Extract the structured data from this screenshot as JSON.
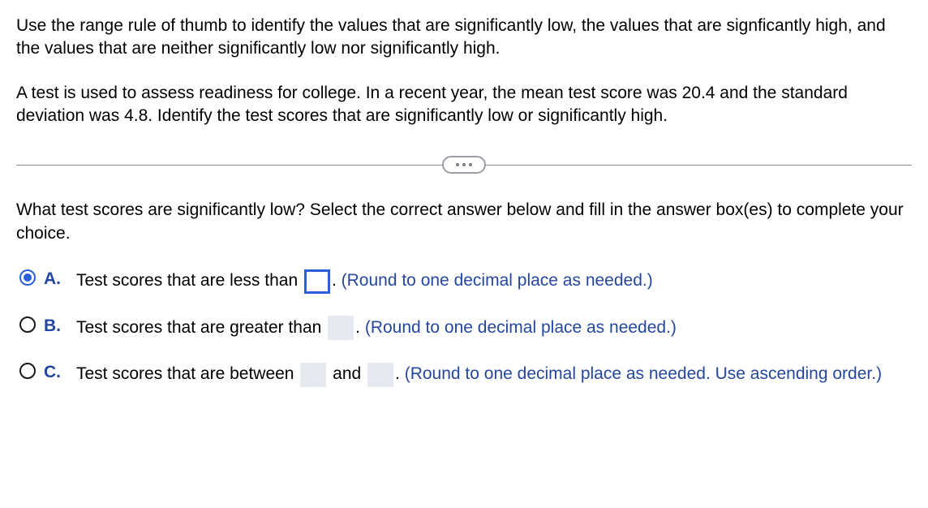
{
  "question": {
    "para1": "Use the range rule of thumb to identify the values that are significantly low, the values that are signficantly high, and the values that are neither significantly low nor significantly high.",
    "para2": "A test is used to assess readiness for college. In a recent year, the mean test score was 20.4 and the standard deviation was 4.8. Identify the test scores that are significantly low or significantly high."
  },
  "prompt": "What test scores are significantly low? Select the correct answer below and fill in the answer box(es) to complete your choice.",
  "options": {
    "a": {
      "letter": "A.",
      "text_before": "Test scores that are less than ",
      "text_after": ". ",
      "hint": "(Round to one decimal place as needed.)",
      "selected": true
    },
    "b": {
      "letter": "B.",
      "text_before": "Test scores that are greater than ",
      "text_after": ". ",
      "hint": "(Round to one decimal place as needed.)",
      "selected": false
    },
    "c": {
      "letter": "C.",
      "text_before": "Test scores that are between ",
      "text_mid": " and ",
      "text_after": ". ",
      "hint": "(Round to one decimal place as needed. Use ascending order.)",
      "selected": false
    }
  }
}
